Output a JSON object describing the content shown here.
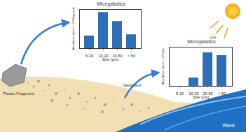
{
  "chart_data": [
    {
      "type": "bar",
      "title": "Microplastics",
      "x_label": "Size (μm)",
      "y_label": "Abundance (items × 10⁴/fragment)",
      "categories": [
        "5-10",
        "10-20",
        "20-50",
        "> 50"
      ],
      "values": [
        4.2,
        12,
        9,
        4.6
      ],
      "color": "#2f6db5",
      "ylim": [
        0,
        13
      ],
      "tick_labels": "x"
    },
    {
      "type": "bar",
      "title": "Microplastics",
      "x_label": "Size (μm)",
      "y_label": "Abundance (items × 10³/site)",
      "categories": [
        "5-10",
        "10-20",
        "20-50",
        "> 50"
      ],
      "values": [
        0,
        1.5,
        6,
        5.5
      ],
      "color": "#2f6db5",
      "ylim": [
        0,
        7
      ],
      "tick_labels": "x"
    }
  ],
  "labels": {
    "sun": "UV",
    "fragment": "Plastic Fragment",
    "sediment": "Sediment",
    "sea": "Wave"
  }
}
